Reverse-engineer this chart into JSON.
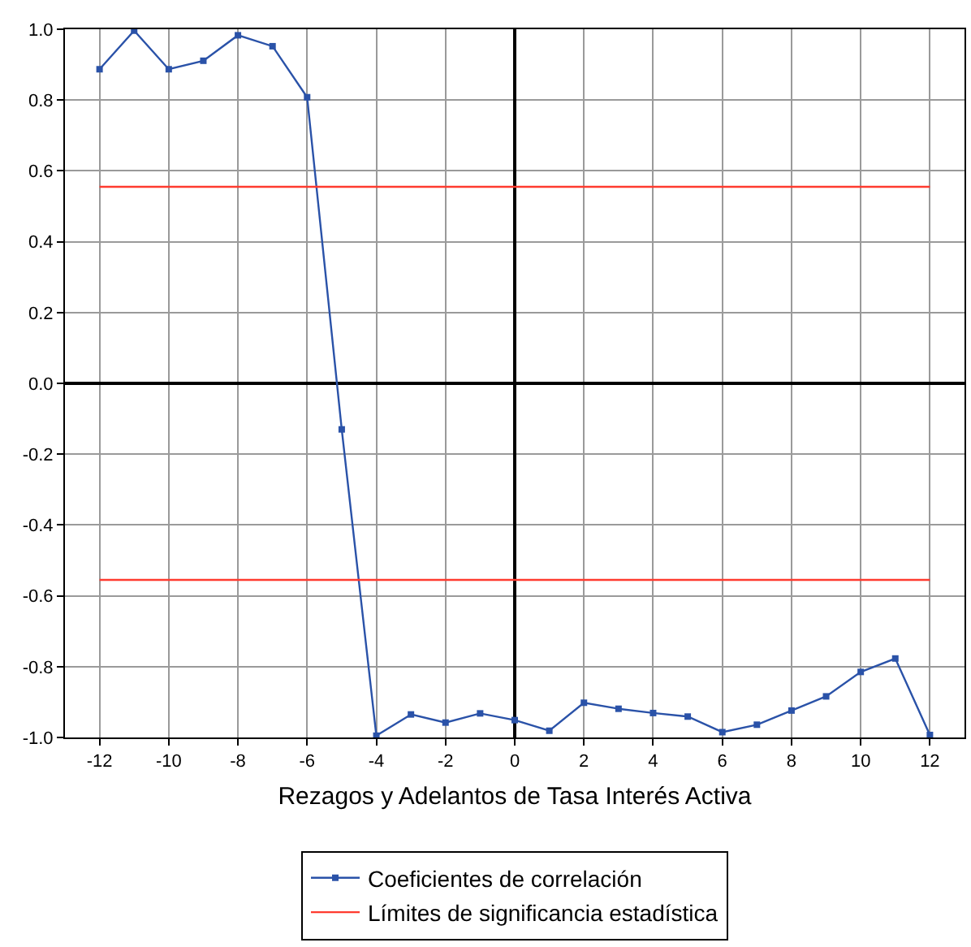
{
  "chart_data": {
    "type": "line",
    "xlabel": "Rezagos y Adelantos de Tasa Interés Activa",
    "xlim": [
      -13,
      13
    ],
    "xticks": [
      -12,
      -10,
      -8,
      -6,
      -4,
      -2,
      0,
      2,
      4,
      6,
      8,
      10,
      12
    ],
    "ylim": [
      -1.0,
      1.0
    ],
    "yticks": [
      {
        "value": -1.0,
        "label": "-1.0"
      },
      {
        "value": -0.8,
        "label": "-0.8"
      },
      {
        "value": -0.6,
        "label": "-0.6"
      },
      {
        "value": -0.4,
        "label": "-0.4"
      },
      {
        "value": -0.2,
        "label": "-0.2"
      },
      {
        "value": 0.0,
        "label": "0.0"
      },
      {
        "value": 0.2,
        "label": "0.2"
      },
      {
        "value": 0.4,
        "label": "0.4"
      },
      {
        "value": 0.6,
        "label": "0.6"
      },
      {
        "value": 0.8,
        "label": "0.8"
      },
      {
        "value": 1.0,
        "label": "1.0"
      }
    ],
    "grid": true,
    "legend": "bottom",
    "series": [
      {
        "name": "Coeficientes de correlación",
        "color": "#2a52a8",
        "marker": "square",
        "x": [
          -12,
          -11,
          -10,
          -9,
          -8,
          -7,
          -6,
          -5,
          -4,
          -3,
          -2,
          -1,
          0,
          1,
          2,
          3,
          4,
          5,
          6,
          7,
          8,
          9,
          10,
          11,
          12
        ],
        "values": [
          0.887,
          0.996,
          0.887,
          0.911,
          0.983,
          0.952,
          0.808,
          -0.13,
          -0.995,
          -0.935,
          -0.958,
          -0.932,
          -0.951,
          -0.981,
          -0.902,
          -0.919,
          -0.931,
          -0.941,
          -0.985,
          -0.964,
          -0.924,
          -0.884,
          -0.815,
          -0.777,
          -0.993
        ]
      },
      {
        "name": "Límites de significancia estadística",
        "color": "#ff3b2f",
        "marker": "none",
        "x": [
          -12,
          12
        ],
        "values": [
          0.555,
          0.555
        ]
      },
      {
        "color": "#ff3b2f",
        "marker": "none",
        "x": [
          -12,
          12
        ],
        "values": [
          -0.555,
          -0.555
        ]
      }
    ]
  }
}
